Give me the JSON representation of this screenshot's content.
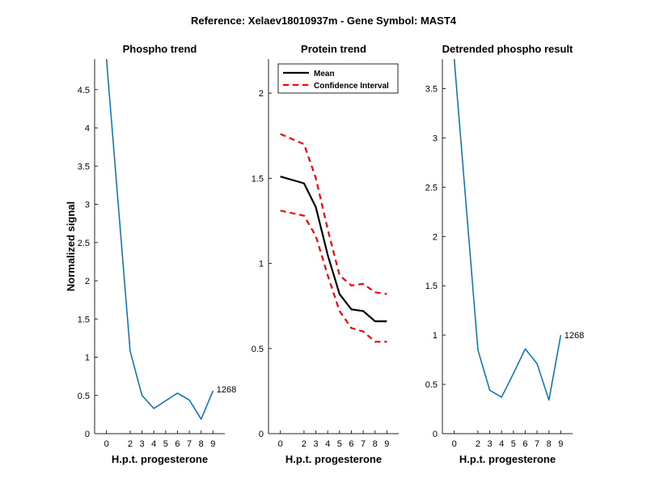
{
  "figure": {
    "suptitle": "Reference:  Xelaev18010937m - Gene Symbol:  MAST4",
    "colors": {
      "series": "#0072BD",
      "mean": "#000000",
      "ci": "#FF0000",
      "axis": "#262626"
    }
  },
  "chart_data": [
    {
      "type": "line",
      "title": "Phospho trend",
      "xlabel": "H.p.t. progesterone",
      "ylabel": "Normalized signal",
      "xlim": [
        -1,
        10
      ],
      "ylim": [
        0,
        4.9
      ],
      "xticks": [
        0,
        2,
        3,
        4,
        5,
        6,
        7,
        8,
        9
      ],
      "yticks": [
        0,
        0.5,
        1,
        1.5,
        2,
        2.5,
        3,
        3.5,
        4,
        4.5
      ],
      "ytick_labels": [
        "0",
        "0.5",
        "1",
        "1.5",
        "2",
        "2.5",
        "3",
        "3.5",
        "4",
        "4.5"
      ],
      "series": [
        {
          "name": "1268",
          "x": [
            0,
            2,
            3,
            4,
            5,
            6,
            7,
            8,
            9
          ],
          "values": [
            4.9,
            1.08,
            0.5,
            0.33,
            0.43,
            0.53,
            0.44,
            0.19,
            0.56
          ]
        }
      ],
      "annotation": {
        "text": "1268",
        "x": 9.3,
        "y": 0.58
      }
    },
    {
      "type": "line",
      "title": "Protein trend",
      "xlabel": "H.p.t. progesterone",
      "ylabel": "",
      "xlim": [
        -1,
        10
      ],
      "ylim": [
        0,
        2.2
      ],
      "xticks": [
        0,
        2,
        3,
        4,
        5,
        6,
        7,
        8,
        9
      ],
      "yticks": [
        0,
        0.5,
        1,
        1.5,
        2
      ],
      "ytick_labels": [
        "0",
        "0.5",
        "1",
        "1.5",
        "2"
      ],
      "legend": {
        "position": "top-left",
        "entries": [
          "Mean",
          "Confidence Interval"
        ]
      },
      "series": [
        {
          "name": "Mean",
          "style": "solid",
          "x": [
            0,
            2,
            3,
            4,
            5,
            6,
            7,
            8,
            9
          ],
          "values": [
            1.51,
            1.47,
            1.33,
            1.05,
            0.82,
            0.73,
            0.72,
            0.66,
            0.66
          ]
        },
        {
          "name": "Confidence Interval (upper)",
          "style": "dashed",
          "x": [
            0,
            2,
            3,
            4,
            5,
            6,
            7,
            8,
            9
          ],
          "values": [
            1.76,
            1.7,
            1.5,
            1.2,
            0.93,
            0.87,
            0.88,
            0.83,
            0.82
          ]
        },
        {
          "name": "Confidence Interval (lower)",
          "style": "dashed",
          "x": [
            0,
            2,
            3,
            4,
            5,
            6,
            7,
            8,
            9
          ],
          "values": [
            1.31,
            1.28,
            1.16,
            0.93,
            0.72,
            0.62,
            0.6,
            0.54,
            0.54
          ]
        }
      ]
    },
    {
      "type": "line",
      "title": "Detrended phospho result",
      "xlabel": "H.p.t. progesterone",
      "ylabel": "",
      "xlim": [
        -1,
        10
      ],
      "ylim": [
        0,
        3.8
      ],
      "xticks": [
        0,
        2,
        3,
        4,
        5,
        6,
        7,
        8,
        9
      ],
      "yticks": [
        0,
        0.5,
        1,
        1.5,
        2,
        2.5,
        3,
        3.5
      ],
      "ytick_labels": [
        "0",
        "0.5",
        "1",
        "1.5",
        "2",
        "2.5",
        "3",
        "3.5"
      ],
      "series": [
        {
          "name": "1268",
          "x": [
            0,
            2,
            3,
            4,
            5,
            6,
            7,
            8,
            9
          ],
          "values": [
            3.8,
            0.85,
            0.44,
            0.37,
            0.61,
            0.86,
            0.71,
            0.34,
            1.0
          ]
        }
      ],
      "annotation": {
        "text": "1268",
        "x": 9.3,
        "y": 1.0
      }
    }
  ]
}
